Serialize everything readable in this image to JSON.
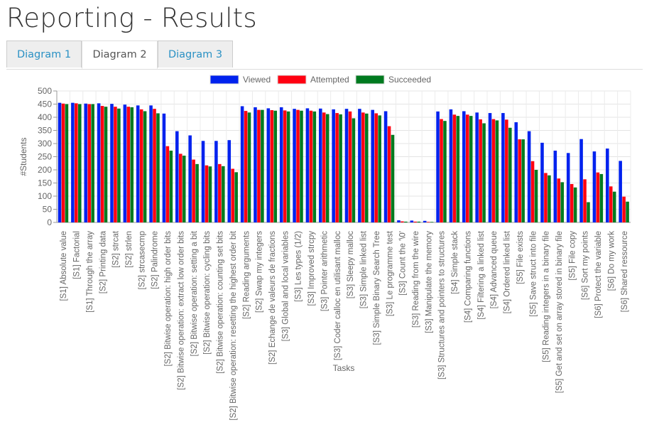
{
  "page": {
    "title": "Reporting - Results"
  },
  "tabs": [
    {
      "label": "Diagram 1",
      "active": false
    },
    {
      "label": "Diagram 2",
      "active": true
    },
    {
      "label": "Diagram 3",
      "active": false
    }
  ],
  "colors": {
    "viewed": "#0022ee",
    "attempted": "#ff0011",
    "succeeded": "#007a1f",
    "tab_link": "#2a91c4"
  },
  "chart_data": {
    "type": "bar",
    "xlabel": "Tasks",
    "ylabel": "#Students",
    "ylim": [
      0,
      500
    ],
    "yticks": [
      0,
      50,
      100,
      150,
      200,
      250,
      300,
      350,
      400,
      450,
      500
    ],
    "grid": true,
    "legend_position": "top-center",
    "categories": [
      "[S1] Absolute value",
      "[S1] Factorial",
      "[S1] Through the array",
      "[S2] Printing data",
      "[S2] strcat",
      "[S2] strlen",
      "[S2] strcasecmp",
      "[S2] Palindrome",
      "[S2] Bitwise operation: high order bits",
      "[S2] Bitwise operation: extract low order bits",
      "[S2] Bitwise operation: setting a bit",
      "[S2] Bitwise operation: cycling bits",
      "[S2] Bitwise operation: counting set bits",
      "[S2] Bitwise operation: resetting the highest order bit",
      "[S2] Reading arguments",
      "[S2] Swap my integers",
      "[S2] Echange de valeurs de fractions",
      "[S3] Global and local variables",
      "[S3] Les types (1/2)",
      "[S3] Improved strcpy",
      "[S3] Pointer arithmetic",
      "[S3] Coder calloc en utilisant malloc",
      "[S3] Sleepy malloc",
      "[S3] Simple linked list",
      "[S3] Simple Binary Search Tree",
      "[S3] Le programme test",
      "[S3] Count the '\\0'",
      "[S3] Reading from the wire",
      "[S3] Manipulate the memory",
      "[S3] Structures and pointers to structures",
      "[S4] Simple stack",
      "[S4] Comparing functions",
      "[S4] Filtering a linked list",
      "[S4] Advanced queue",
      "[S4] Ordered  linked list",
      "[S5] File exists",
      "[S5] Save struct into file",
      "[S5] Reading integers in a binary file",
      "[S5] Get and set on array stored in binary file",
      "[S5] File copy",
      "[S6] Sort my points",
      "[S6] Protect the variable",
      "[S6] Do my work",
      "[S6] Shared ressource"
    ],
    "series": [
      {
        "name": "Viewed",
        "color": "#0022ee",
        "values": [
          455,
          455,
          452,
          453,
          451,
          448,
          445,
          445,
          414,
          347,
          331,
          310,
          310,
          313,
          442,
          438,
          434,
          438,
          432,
          434,
          433,
          430,
          432,
          432,
          428,
          423,
          8,
          7,
          6,
          422,
          430,
          423,
          418,
          416,
          416,
          381,
          347,
          303,
          273,
          264,
          317,
          270,
          281,
          234
        ]
      },
      {
        "name": "Attempted",
        "color": "#ff0011",
        "values": [
          452,
          453,
          450,
          443,
          440,
          440,
          430,
          432,
          290,
          261,
          239,
          217,
          222,
          204,
          424,
          428,
          427,
          426,
          428,
          425,
          418,
          416,
          422,
          418,
          415,
          366,
          4,
          3,
          2,
          393,
          410,
          410,
          392,
          393,
          391,
          316,
          233,
          188,
          167,
          146,
          164,
          190,
          137,
          98
        ]
      },
      {
        "name": "Succeeded",
        "color": "#007a1f",
        "values": [
          450,
          450,
          450,
          440,
          433,
          438,
          423,
          415,
          273,
          254,
          222,
          213,
          214,
          191,
          418,
          428,
          425,
          422,
          425,
          422,
          412,
          411,
          396,
          414,
          407,
          333,
          3,
          3,
          2,
          386,
          405,
          405,
          377,
          388,
          360,
          316,
          200,
          179,
          153,
          133,
          77,
          184,
          117,
          79
        ]
      }
    ]
  }
}
